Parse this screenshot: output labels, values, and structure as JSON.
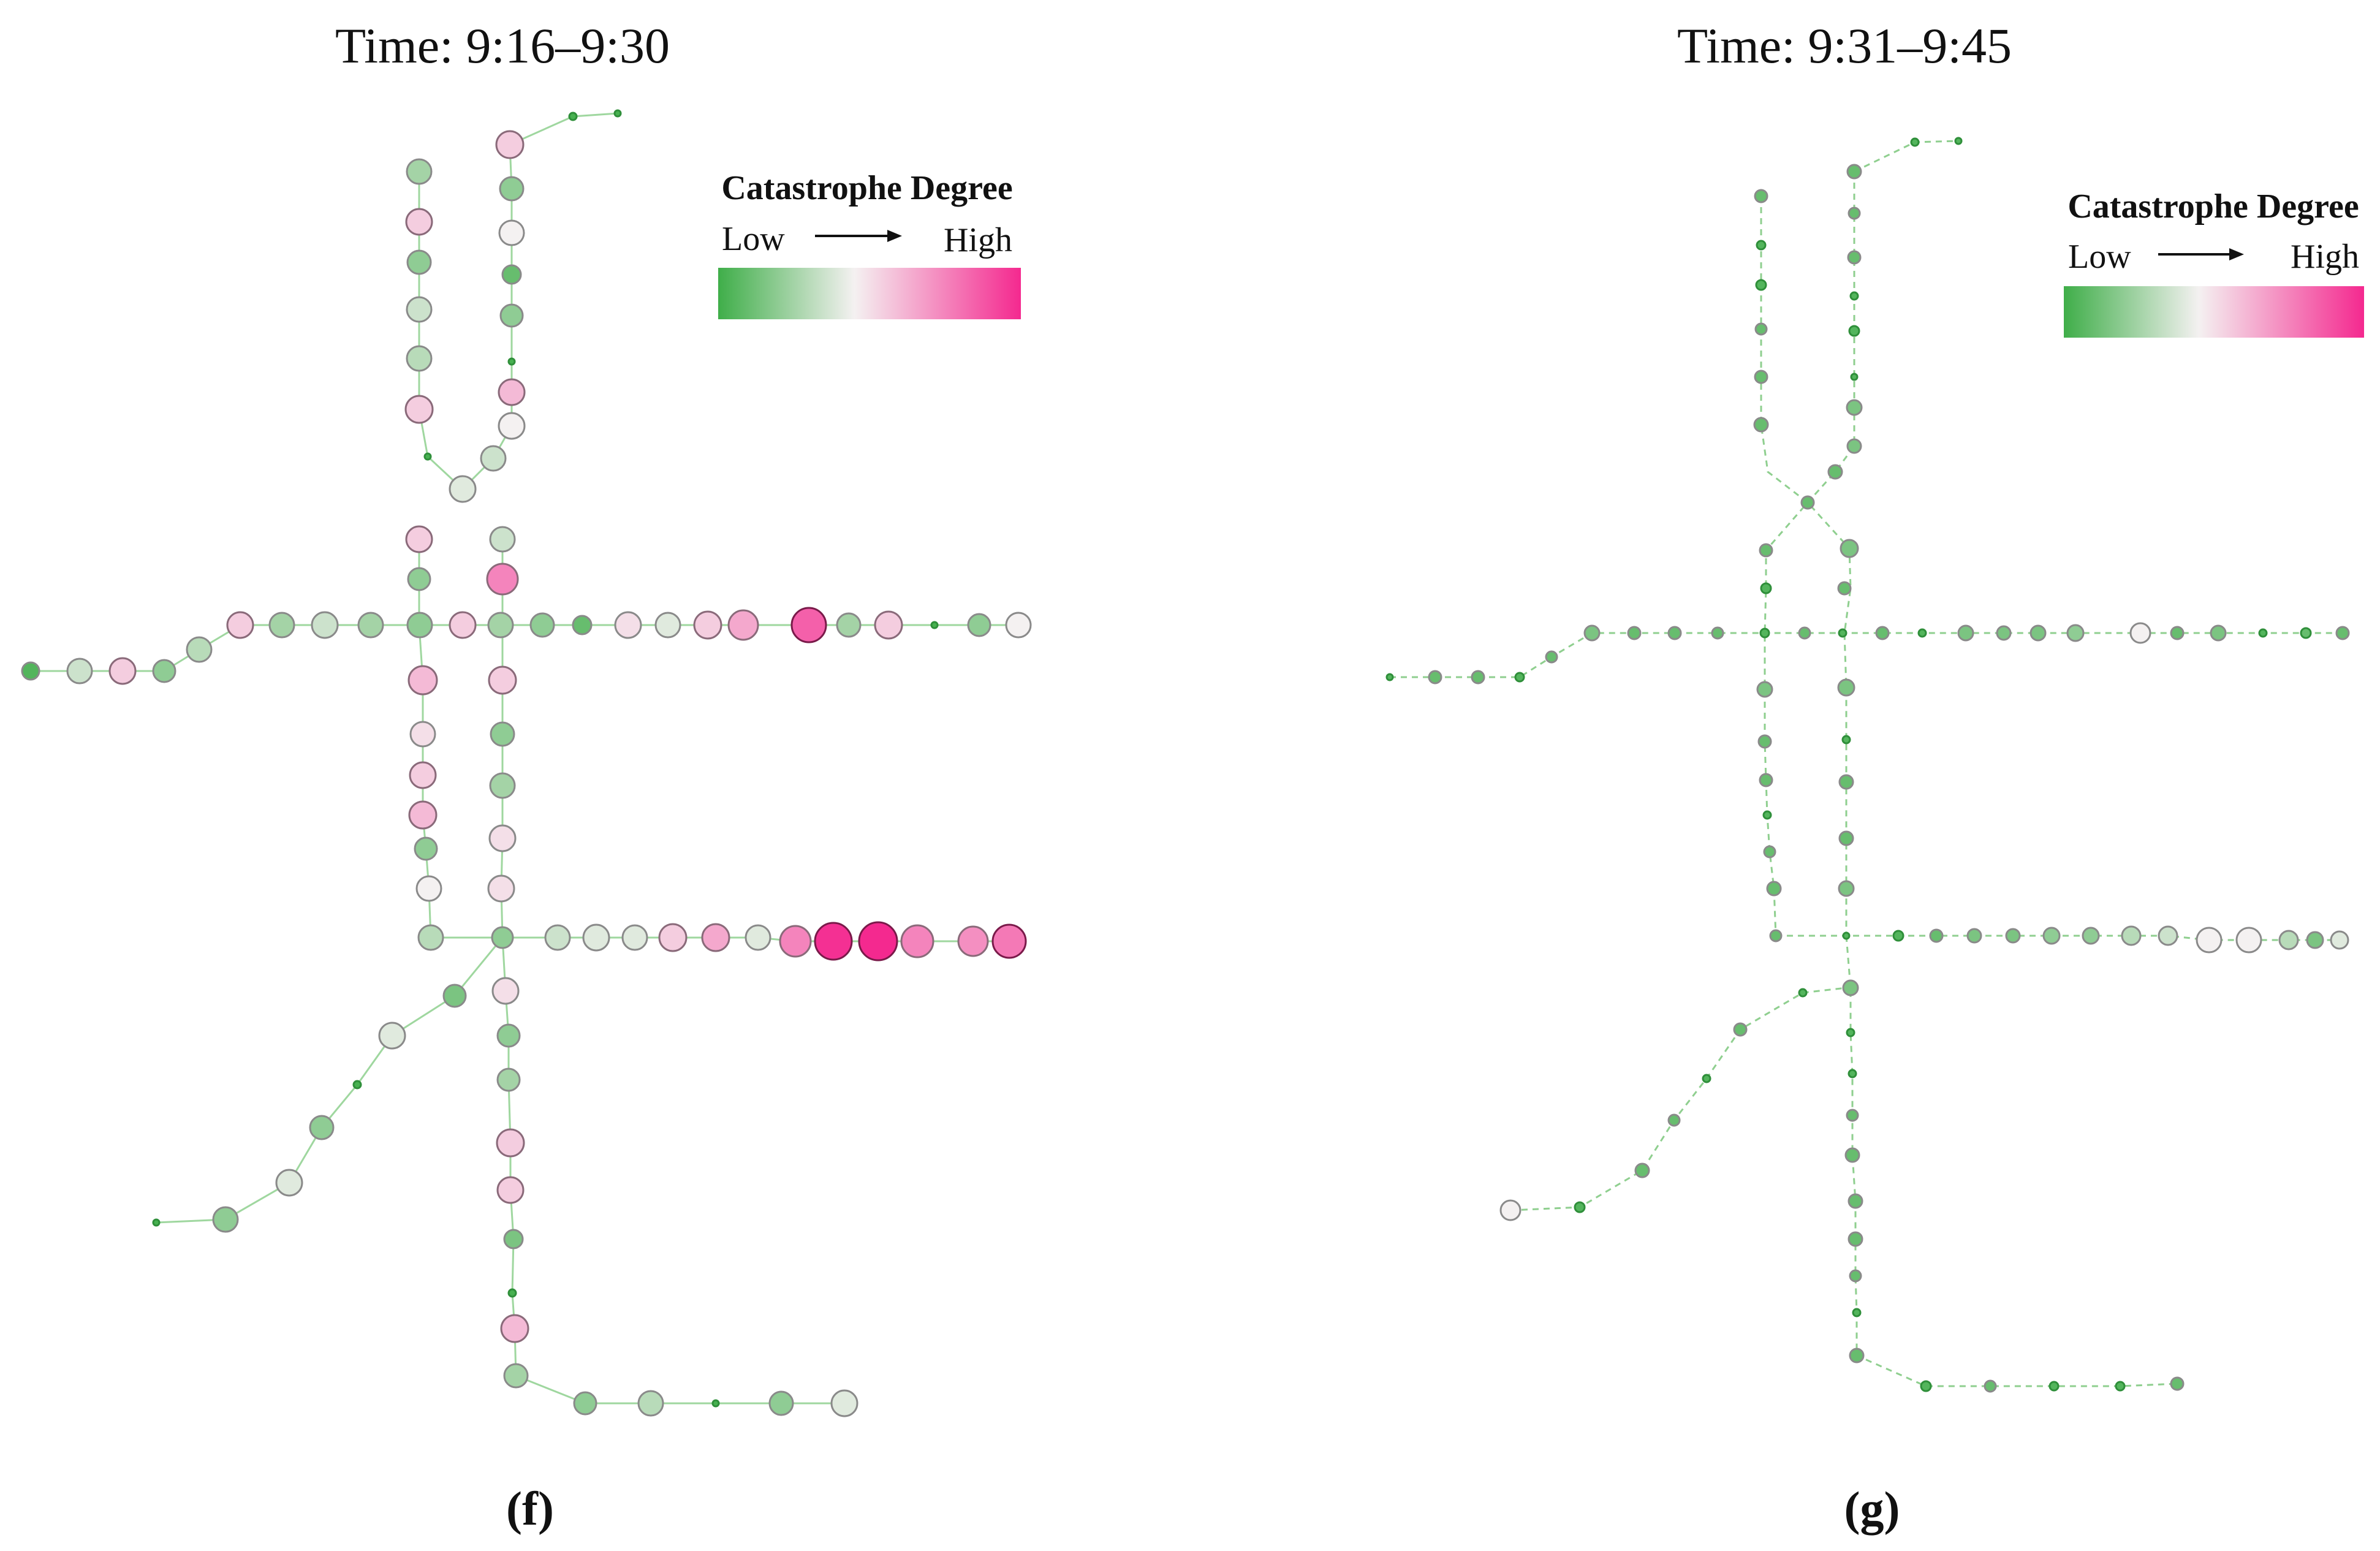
{
  "panels": [
    {
      "id": "f",
      "title": "Time: 9:16–9:30",
      "label": "(f)",
      "legend": {
        "title": "Catastrophe Degree",
        "low": "Low",
        "high": "High"
      }
    },
    {
      "id": "g",
      "title": "Time: 9:31–9:45",
      "label": "(g)",
      "legend": {
        "title": "Catastrophe Degree",
        "low": "Low",
        "high": "High"
      }
    }
  ],
  "colors": {
    "low": "#3fae49",
    "mid": "#f4f1f1",
    "high": "#f4298f",
    "edge": "#9fd79f",
    "text": "#111111"
  }
}
